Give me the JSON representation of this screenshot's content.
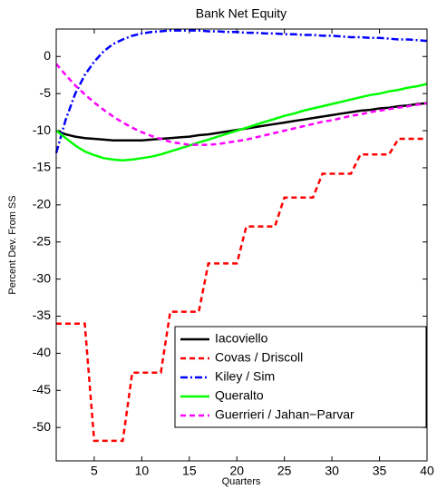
{
  "chart_data": {
    "type": "line",
    "title": "Bank Net Equity",
    "xlabel": "Quarters",
    "ylabel": "Percent Dev. From SS",
    "x": [
      1,
      2,
      3,
      4,
      5,
      6,
      7,
      8,
      9,
      10,
      11,
      12,
      13,
      14,
      15,
      16,
      17,
      18,
      19,
      20,
      21,
      22,
      23,
      24,
      25,
      26,
      27,
      28,
      29,
      30,
      31,
      32,
      33,
      34,
      35,
      36,
      37,
      38,
      39,
      40
    ],
    "xlim": [
      1,
      40
    ],
    "xticks": [
      5,
      10,
      15,
      20,
      25,
      30,
      35,
      40
    ],
    "ylim": [
      -54.5,
      3.7
    ],
    "yticks": [
      0,
      -5,
      -10,
      -15,
      -20,
      -25,
      -30,
      -35,
      -40,
      -45,
      -50
    ],
    "legend": "lower right",
    "series": [
      {
        "name": "Iacoviello",
        "color": "#000000",
        "dash": "solid",
        "values": [
          -10,
          -10.5,
          -10.8,
          -11,
          -11.1,
          -11.2,
          -11.3,
          -11.3,
          -11.3,
          -11.3,
          -11.2,
          -11.1,
          -11,
          -10.9,
          -10.8,
          -10.6,
          -10.5,
          -10.3,
          -10.1,
          -9.9,
          -9.7,
          -9.5,
          -9.3,
          -9.1,
          -8.9,
          -8.7,
          -8.5,
          -8.3,
          -8.1,
          -7.9,
          -7.7,
          -7.5,
          -7.3,
          -7.2,
          -7,
          -6.9,
          -6.7,
          -6.6,
          -6.4,
          -6.3
        ]
      },
      {
        "name": "Covas / Driscoll",
        "color": "#ff0000",
        "dash": "dashed",
        "values": [
          -36,
          -36,
          -36,
          -36,
          -51.8,
          -51.8,
          -51.8,
          -51.8,
          -42.6,
          -42.6,
          -42.6,
          -42.6,
          -34.4,
          -34.4,
          -34.4,
          -34.4,
          -27.9,
          -27.9,
          -27.9,
          -27.9,
          -22.9,
          -22.9,
          -22.9,
          -22.9,
          -19,
          -19,
          -19,
          -19,
          -15.8,
          -15.8,
          -15.8,
          -15.8,
          -13.2,
          -13.2,
          -13.2,
          -13.2,
          -11.1,
          -11.1,
          -11.1,
          -11.1
        ]
      },
      {
        "name": "Kiley / Sim",
        "color": "#0000ff",
        "dash": "dashdot",
        "values": [
          -13,
          -8.5,
          -5,
          -2.5,
          -0.7,
          0.7,
          1.7,
          2.3,
          2.8,
          3.1,
          3.3,
          3.4,
          3.5,
          3.5,
          3.5,
          3.5,
          3.4,
          3.4,
          3.3,
          3.3,
          3.2,
          3.2,
          3.1,
          3.1,
          3,
          3,
          2.9,
          2.9,
          2.8,
          2.8,
          2.7,
          2.6,
          2.6,
          2.5,
          2.5,
          2.4,
          2.3,
          2.3,
          2.2,
          2.1
        ]
      },
      {
        "name": "Queralto",
        "color": "#00ff00",
        "dash": "solid",
        "values": [
          -10,
          -11,
          -12,
          -12.8,
          -13.3,
          -13.7,
          -13.9,
          -14,
          -13.9,
          -13.7,
          -13.5,
          -13.2,
          -12.8,
          -12.4,
          -12,
          -11.6,
          -11.2,
          -10.8,
          -10.4,
          -10,
          -9.6,
          -9.2,
          -8.8,
          -8.4,
          -8,
          -7.7,
          -7.3,
          -7,
          -6.7,
          -6.4,
          -6.1,
          -5.8,
          -5.5,
          -5.2,
          -5,
          -4.7,
          -4.5,
          -4.2,
          -4,
          -3.7
        ]
      },
      {
        "name": "Guerrieri / Jahan−Parvar",
        "color": "#ff00ff",
        "dash": "dashed",
        "values": [
          -1,
          -2.5,
          -3.9,
          -5.1,
          -6.2,
          -7.2,
          -8.1,
          -8.9,
          -9.6,
          -10.2,
          -10.7,
          -11.1,
          -11.5,
          -11.7,
          -11.9,
          -11.9,
          -11.9,
          -11.8,
          -11.6,
          -11.4,
          -11.2,
          -10.9,
          -10.6,
          -10.3,
          -10,
          -9.7,
          -9.4,
          -9.1,
          -8.8,
          -8.6,
          -8.3,
          -8,
          -7.8,
          -7.5,
          -7.3,
          -7.1,
          -6.9,
          -6.7,
          -6.5,
          -6.3
        ]
      }
    ]
  }
}
